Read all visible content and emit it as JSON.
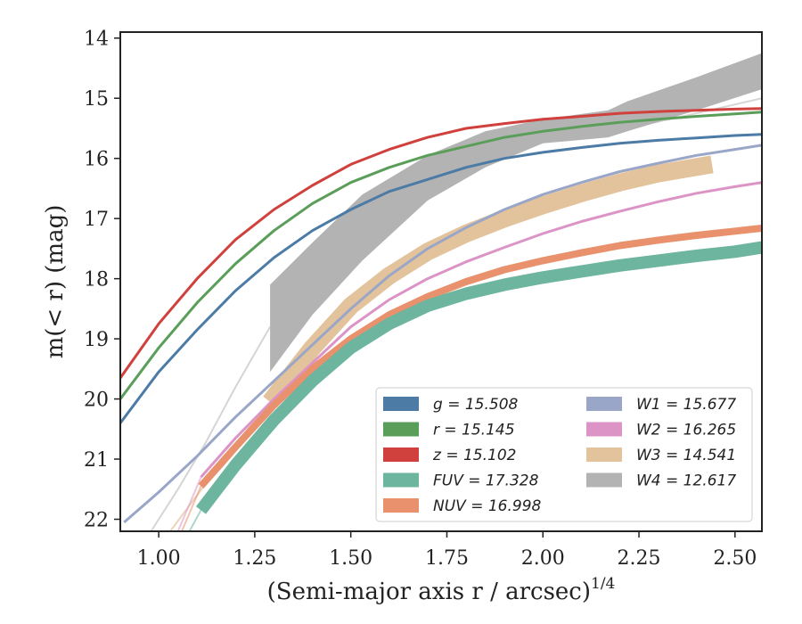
{
  "chart_data": {
    "type": "line",
    "xlabel": "(Semi-major axis r / arcsec)",
    "xlabel_exponent": "1/4",
    "ylabel": "m(< r) (mag)",
    "xlim": [
      0.9,
      2.57
    ],
    "ylim": [
      22.2,
      13.9
    ],
    "y_inverted": true,
    "x_ticks": [
      1.0,
      1.25,
      1.5,
      1.75,
      2.0,
      2.25,
      2.5
    ],
    "x_tick_labels": [
      "1.00",
      "1.25",
      "1.50",
      "1.75",
      "2.00",
      "2.25",
      "2.50"
    ],
    "y_ticks": [
      14,
      15,
      16,
      17,
      18,
      19,
      20,
      21,
      22
    ],
    "y_tick_labels": [
      "14",
      "15",
      "16",
      "17",
      "18",
      "19",
      "20",
      "21",
      "22"
    ],
    "grid": false,
    "legend_position": "lower-right",
    "series": [
      {
        "name": "g",
        "legend": "g = 15.508",
        "color": "#4c7ba6",
        "alpha": 1.0,
        "width": 3,
        "x": [
          0.9,
          1.0,
          1.1,
          1.2,
          1.3,
          1.4,
          1.5,
          1.6,
          1.7,
          1.8,
          1.9,
          2.0,
          2.1,
          2.2,
          2.3,
          2.4,
          2.5,
          2.57
        ],
        "y": [
          20.4,
          19.55,
          18.85,
          18.2,
          17.65,
          17.2,
          16.85,
          16.55,
          16.35,
          16.15,
          16.0,
          15.9,
          15.82,
          15.75,
          15.7,
          15.66,
          15.62,
          15.6
        ]
      },
      {
        "name": "r",
        "legend": "r = 15.145",
        "color": "#5a9e5a",
        "alpha": 1.0,
        "width": 3,
        "x": [
          0.9,
          1.0,
          1.1,
          1.2,
          1.3,
          1.4,
          1.5,
          1.6,
          1.7,
          1.8,
          1.9,
          2.0,
          2.1,
          2.2,
          2.3,
          2.4,
          2.5,
          2.57
        ],
        "y": [
          20.0,
          19.15,
          18.4,
          17.75,
          17.2,
          16.75,
          16.4,
          16.15,
          15.95,
          15.8,
          15.65,
          15.55,
          15.47,
          15.4,
          15.35,
          15.3,
          15.26,
          15.23
        ]
      },
      {
        "name": "z",
        "legend": "z = 15.102",
        "color": "#d0403c",
        "alpha": 1.0,
        "width": 3,
        "x": [
          0.9,
          1.0,
          1.1,
          1.2,
          1.3,
          1.4,
          1.5,
          1.6,
          1.7,
          1.8,
          1.9,
          2.0,
          2.1,
          2.2,
          2.3,
          2.4,
          2.5,
          2.57
        ],
        "y": [
          19.65,
          18.75,
          18.0,
          17.35,
          16.85,
          16.45,
          16.1,
          15.85,
          15.65,
          15.5,
          15.42,
          15.35,
          15.3,
          15.25,
          15.22,
          15.2,
          15.18,
          15.17
        ]
      },
      {
        "name": "FUV",
        "legend": "FUV = 17.328",
        "color": "#6db59f",
        "alpha": 1.0,
        "width": 14,
        "x": [
          1.11,
          1.2,
          1.3,
          1.4,
          1.5,
          1.6,
          1.7,
          1.8,
          1.9,
          2.0,
          2.1,
          2.2,
          2.3,
          2.4,
          2.5,
          2.57
        ],
        "y": [
          21.85,
          21.1,
          20.35,
          19.7,
          19.15,
          18.75,
          18.45,
          18.25,
          18.1,
          17.98,
          17.88,
          17.78,
          17.7,
          17.62,
          17.55,
          17.48
        ]
      },
      {
        "name": "NUV",
        "legend": "NUV = 16.998",
        "color": "#e8916c",
        "alpha": 1.0,
        "width": 8,
        "x": [
          1.11,
          1.2,
          1.3,
          1.4,
          1.5,
          1.6,
          1.7,
          1.8,
          1.9,
          2.0,
          2.1,
          2.2,
          2.3,
          2.4,
          2.5,
          2.57
        ],
        "y": [
          21.45,
          20.8,
          20.1,
          19.5,
          19.0,
          18.6,
          18.3,
          18.05,
          17.85,
          17.7,
          17.57,
          17.45,
          17.36,
          17.28,
          17.21,
          17.16
        ]
      },
      {
        "name": "W1",
        "legend": "W1 = 15.677",
        "color": "#9aa6c8",
        "alpha": 1.0,
        "width": 3,
        "x": [
          0.91,
          1.0,
          1.1,
          1.2,
          1.3,
          1.4,
          1.5,
          1.6,
          1.7,
          1.8,
          1.9,
          2.0,
          2.1,
          2.2,
          2.3,
          2.4,
          2.5,
          2.57
        ],
        "y": [
          22.05,
          21.55,
          20.95,
          20.3,
          19.7,
          19.1,
          18.5,
          17.95,
          17.5,
          17.15,
          16.85,
          16.6,
          16.4,
          16.22,
          16.08,
          15.95,
          15.85,
          15.78
        ]
      },
      {
        "name": "W2",
        "legend": "W2 = 16.265",
        "color": "#dc94c6",
        "alpha": 1.0,
        "width": 3,
        "x": [
          1.11,
          1.2,
          1.3,
          1.4,
          1.5,
          1.6,
          1.7,
          1.8,
          1.9,
          2.0,
          2.1,
          2.2,
          2.3,
          2.4,
          2.5,
          2.57
        ],
        "y": [
          21.3,
          20.65,
          20.0,
          19.4,
          18.8,
          18.35,
          18.0,
          17.72,
          17.48,
          17.25,
          17.05,
          16.88,
          16.72,
          16.58,
          16.47,
          16.4
        ]
      },
      {
        "name": "W3",
        "legend": "W3 = 14.541",
        "color": "#e3c39c",
        "alpha": 1.0,
        "width": 20,
        "x": [
          1.29,
          1.4,
          1.5,
          1.6,
          1.7,
          1.8,
          1.9,
          2.0,
          2.1,
          2.2,
          2.3,
          2.44
        ],
        "y": [
          20.05,
          19.15,
          18.45,
          17.95,
          17.55,
          17.25,
          17.0,
          16.78,
          16.58,
          16.4,
          16.25,
          16.1
        ]
      },
      {
        "name": "W4",
        "legend": "W4 = 12.617",
        "color": "#b3b3b3",
        "alpha": 1.0,
        "width": 3,
        "x": [
          1.29,
          1.4,
          1.53,
          1.7,
          1.85,
          2.0,
          2.17,
          2.22,
          2.4,
          2.57
        ],
        "y": [
          18.8,
          18.0,
          17.15,
          16.35,
          15.85,
          15.55,
          15.45,
          15.35,
          14.95,
          14.55
        ],
        "band_upper": [
          18.1,
          17.4,
          16.6,
          15.95,
          15.55,
          15.35,
          15.2,
          15.05,
          14.65,
          14.25
        ],
        "band_lower": [
          19.55,
          18.6,
          17.7,
          16.7,
          16.15,
          15.75,
          15.65,
          15.55,
          15.2,
          14.85
        ]
      }
    ],
    "faint_extrapolations": [
      {
        "name": "W4-extrapolation",
        "color": "#b3b3b3",
        "alpha": 0.55,
        "x": [
          0.98,
          1.05,
          1.12,
          1.2,
          1.29
        ],
        "y": [
          22.2,
          21.5,
          20.75,
          19.8,
          18.8
        ]
      },
      {
        "name": "W3-extrapolation",
        "color": "#e3c39c",
        "alpha": 0.7,
        "x": [
          1.03,
          1.1,
          1.2,
          1.29
        ],
        "y": [
          22.2,
          21.6,
          20.75,
          20.05
        ]
      },
      {
        "name": "NUV-extrapolation",
        "color": "#e8916c",
        "alpha": 0.55,
        "x": [
          1.06,
          1.11
        ],
        "y": [
          22.2,
          21.45
        ]
      },
      {
        "name": "W2-extrapolation",
        "color": "#dc94c6",
        "alpha": 0.55,
        "x": [
          1.05,
          1.11
        ],
        "y": [
          22.2,
          21.3
        ]
      },
      {
        "name": "FUV-extrapolation",
        "color": "#6db59f",
        "alpha": 0.55,
        "x": [
          1.08,
          1.11
        ],
        "y": [
          22.2,
          21.85
        ]
      },
      {
        "name": "W4-continuation",
        "color": "#cccccc",
        "alpha": 0.8,
        "x": [
          2.22,
          2.4,
          2.57
        ],
        "y": [
          15.5,
          15.25,
          15.0
        ]
      }
    ]
  }
}
